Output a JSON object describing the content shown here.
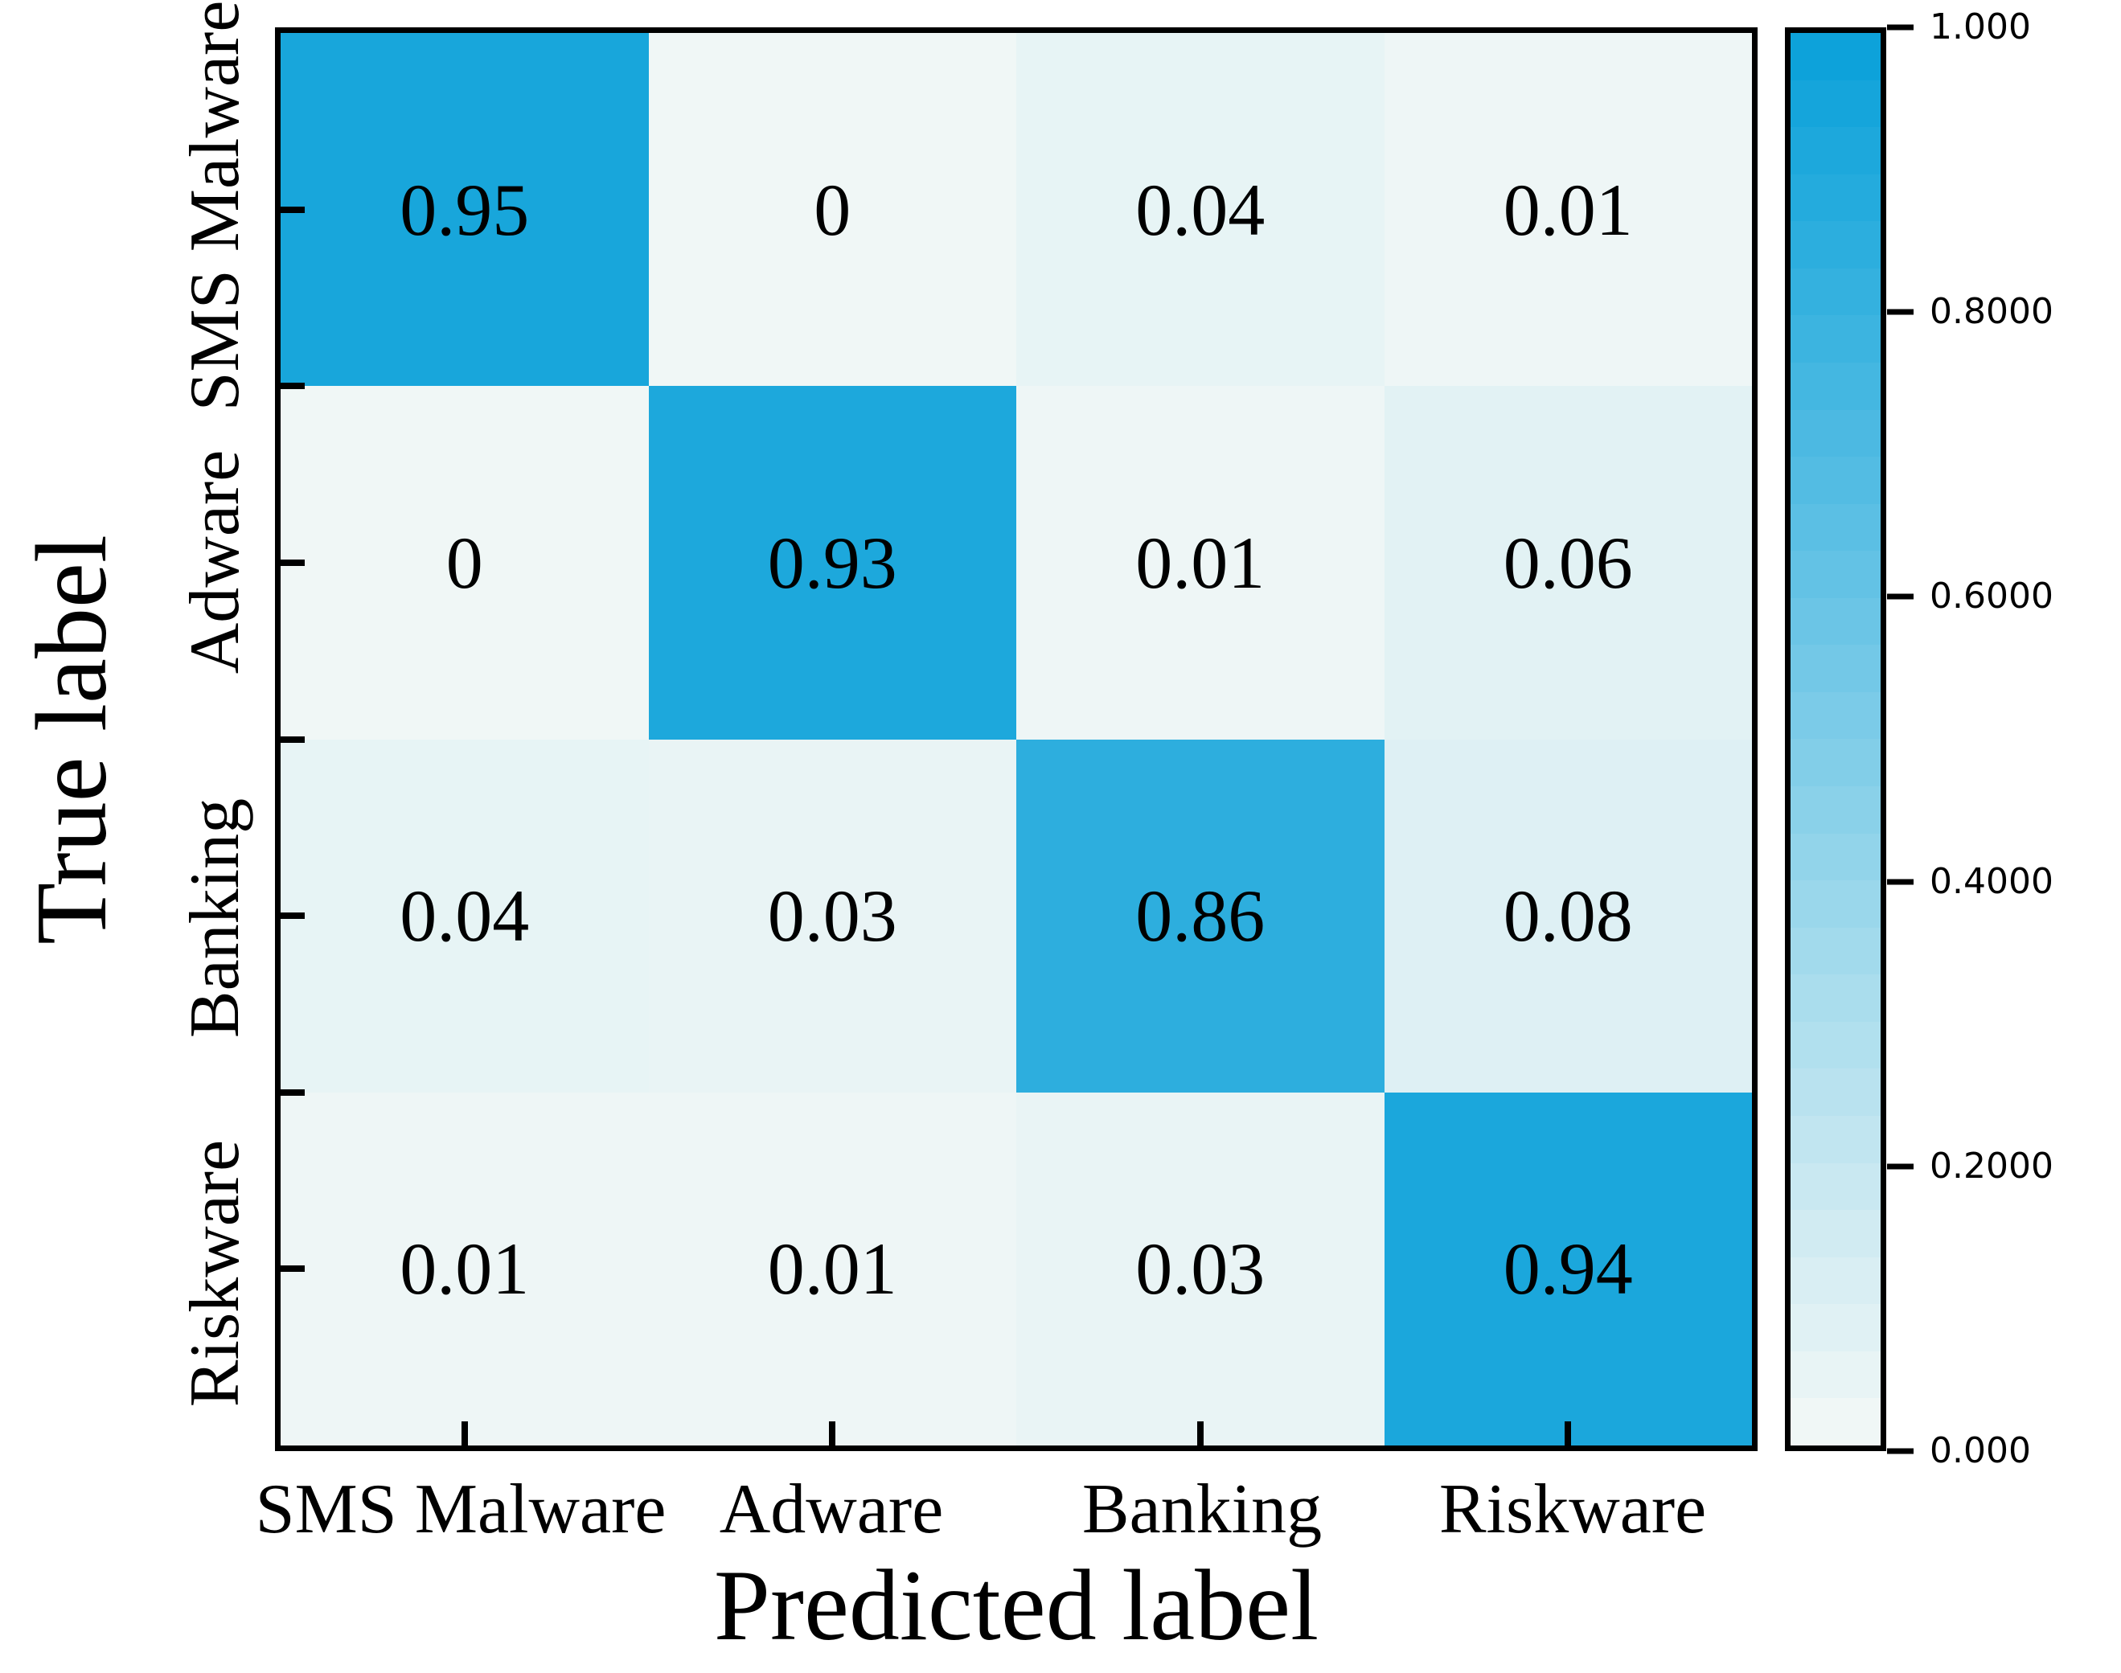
{
  "chart_data": {
    "type": "heatmap",
    "title": "",
    "xlabel": "Predicted label",
    "ylabel": "True label",
    "categories": [
      "SMS Malware",
      "Adware",
      "Banking",
      "Riskware"
    ],
    "row_labels": [
      "SMS Malware",
      "Adware",
      "Banking",
      "Riskware"
    ],
    "col_labels": [
      "SMS Malware",
      "Adware",
      "Banking",
      "Riskware"
    ],
    "matrix": [
      [
        0.95,
        0,
        0.04,
        0.01
      ],
      [
        0,
        0.93,
        0.01,
        0.06
      ],
      [
        0.04,
        0.03,
        0.86,
        0.08
      ],
      [
        0.01,
        0.01,
        0.03,
        0.94
      ]
    ],
    "cell_text": [
      [
        "0.95",
        "0",
        "0.04",
        "0.01"
      ],
      [
        "0",
        "0.93",
        "0.01",
        "0.06"
      ],
      [
        "0.04",
        "0.03",
        "0.86",
        "0.08"
      ],
      [
        "0.01",
        "0.01",
        "0.03",
        "0.94"
      ]
    ],
    "vmin": 0,
    "vmax": 1,
    "grid": false,
    "legend_position": "right-colorbar",
    "colormap": {
      "low": "#f0f7f6",
      "high": "#0da2da",
      "levels": 30
    }
  },
  "colorbar": {
    "ticks": [
      "1.000",
      "0.8000",
      "0.6000",
      "0.4000",
      "0.2000",
      "0.000"
    ],
    "values": [
      1.0,
      0.8,
      0.6,
      0.4,
      0.2,
      0.0
    ]
  }
}
